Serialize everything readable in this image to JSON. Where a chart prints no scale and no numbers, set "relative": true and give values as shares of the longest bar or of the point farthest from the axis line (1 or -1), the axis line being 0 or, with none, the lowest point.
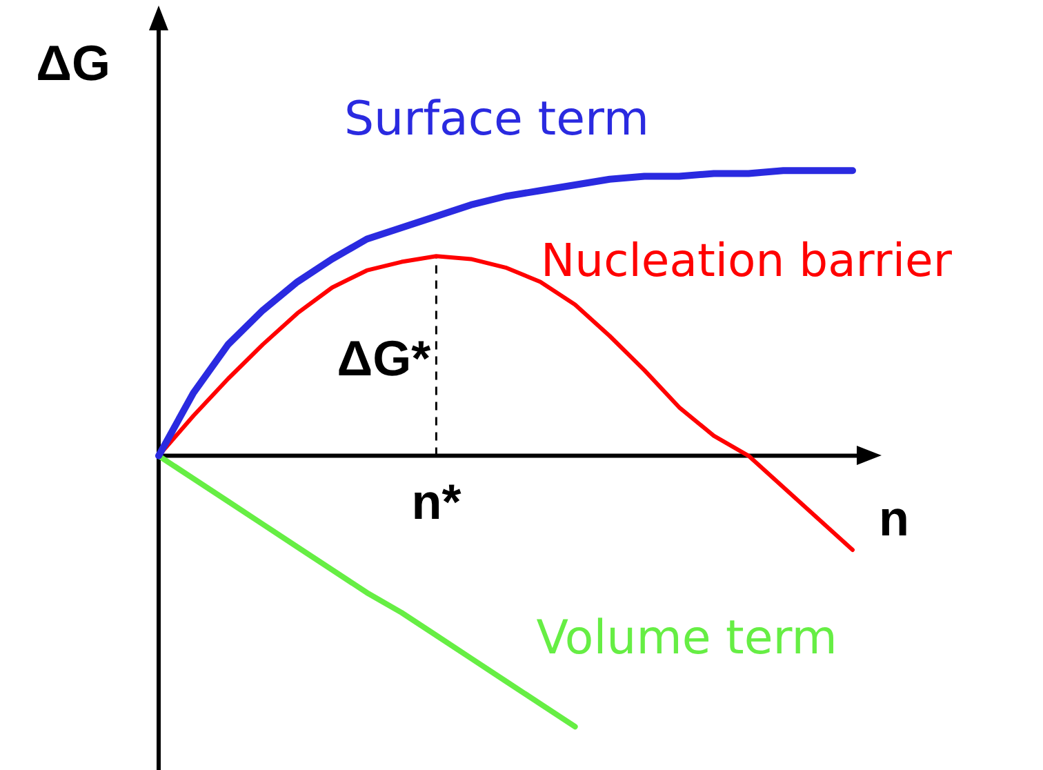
{
  "chart_data": {
    "type": "line",
    "relative": true,
    "xlabel": "n",
    "ylabel": "ΔG",
    "categories": [
      null,
      null,
      null,
      null,
      null,
      null,
      null,
      null,
      null,
      null,
      null,
      null,
      null,
      null,
      null,
      null,
      null,
      null,
      null,
      null,
      null
    ],
    "legend": false,
    "marker": "none",
    "line_style": "solid",
    "series": [
      {
        "name": "Surface term",
        "color": "#2a2ae0",
        "values": [
          0,
          0.22,
          0.39,
          0.51,
          0.61,
          0.69,
          0.76,
          0.8,
          0.84,
          0.88,
          0.91,
          0.93,
          0.95,
          0.97,
          0.98,
          0.98,
          0.99,
          0.99,
          1,
          1,
          1
        ]
      },
      {
        "name": "Nucleation barrier",
        "color": "#ff0000",
        "values": [
          0,
          0.14,
          0.27,
          0.39,
          0.5,
          0.59,
          0.65,
          0.68,
          0.7,
          0.69,
          0.66,
          0.61,
          0.53,
          0.42,
          0.3,
          0.17,
          0.07,
          0,
          -0.11,
          -0.22,
          -0.33
        ]
      },
      {
        "name": "Volume term",
        "color": "#66ee44",
        "values": [
          0,
          -0.08,
          -0.16,
          -0.24,
          -0.32,
          -0.4,
          -0.48,
          -0.55,
          -0.63,
          -0.71,
          -0.79,
          -0.87,
          -0.95,
          null,
          null,
          null,
          null,
          null,
          null,
          null,
          null
        ]
      }
    ],
    "annotations": [
      "ΔG*",
      "n*"
    ]
  }
}
